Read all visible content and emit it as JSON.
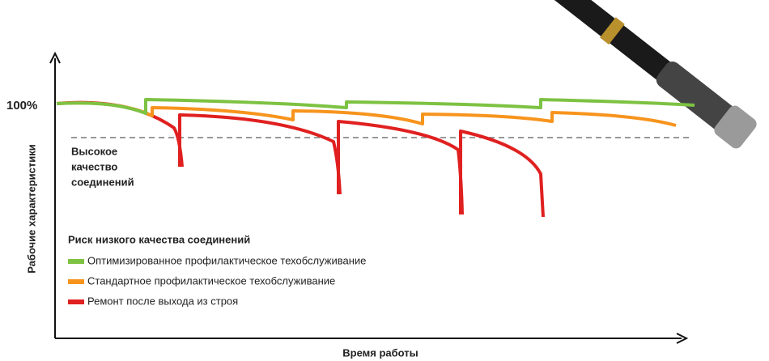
{
  "y_axis_label": "Рабочие характеристики",
  "x_axis_label": "Время работы",
  "y_tick": "100%",
  "annotation": [
    "Высокое",
    "качество",
    "соединений"
  ],
  "risk_title": "Риск низкого качества соединений",
  "legend": [
    {
      "name": "Оптимизированное профилактическое техобслуживание",
      "color": "#7dc242"
    },
    {
      "name": "Стандартное профилактическое техобслуживание",
      "color": "#f7941d"
    },
    {
      "name": "Ремонт после выхода из строя",
      "color": "#e02020"
    }
  ]
}
